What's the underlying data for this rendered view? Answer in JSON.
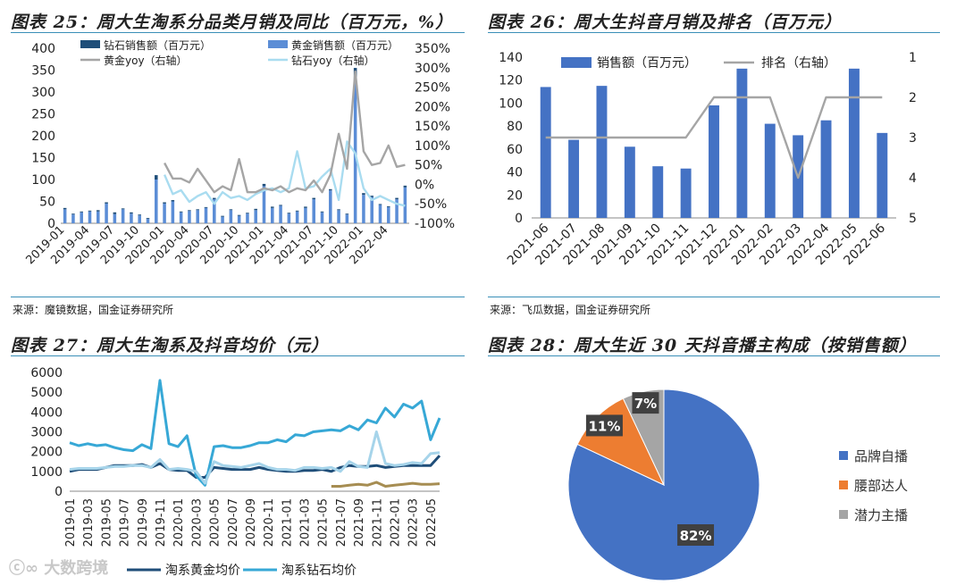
{
  "panels": {
    "p25": {
      "title": "图表 25：周大生淘系分品类月销及同比（百万元，%）",
      "source": "来源：魔镜数据，国金证券研究所"
    },
    "p26": {
      "title": "图表 26：周大生抖音月销及排名（百万元）",
      "source": "来源：飞瓜数据，国金证券研究所"
    },
    "p27": {
      "title": "图表 27：周大生淘系及抖音均价（元）"
    },
    "p28": {
      "title": "图表 28：周大生近 30 天抖音播主构成（按销售额）"
    }
  },
  "watermark": "大数跨境",
  "colors": {
    "blue": "#4472c4",
    "navy": "#1f4e79",
    "mid": "#5b8dd6",
    "cyan": "#37a8d6",
    "lightcyan": "#a9dcf0",
    "gray": "#a5a5a5",
    "orange": "#ed7d31",
    "gold": "#a68d52",
    "rule": "#3a8fb8"
  },
  "chart_data": [
    {
      "id": "p25",
      "type": "bar",
      "x": [
        "2019-01",
        "2019-02",
        "2019-03",
        "2019-04",
        "2019-05",
        "2019-06",
        "2019-07",
        "2019-08",
        "2019-09",
        "2019-10",
        "2019-11",
        "2019-12",
        "2020-01",
        "2020-02",
        "2020-03",
        "2020-04",
        "2020-05",
        "2020-06",
        "2020-07",
        "2020-08",
        "2020-09",
        "2020-10",
        "2020-11",
        "2020-12",
        "2021-01",
        "2021-02",
        "2021-03",
        "2021-04",
        "2021-05",
        "2021-06",
        "2021-07",
        "2021-08",
        "2021-09",
        "2021-10",
        "2021-11",
        "2021-12",
        "2022-01",
        "2022-02",
        "2022-03",
        "2022-04",
        "2022-05",
        "2022-06"
      ],
      "x_ticks": [
        "2019-01",
        "2019-04",
        "2019-07",
        "2019-10",
        "2020-01",
        "2020-04",
        "2020-07",
        "2020-10",
        "2021-01",
        "2021-04",
        "2021-07",
        "2021-10",
        "2022-01",
        "2022-04"
      ],
      "series": [
        {
          "name": "钻石销售额（百万元）",
          "axis": "left",
          "kind": "bar",
          "color": "#1f4e79",
          "values": [
            3,
            2,
            2,
            2,
            3,
            3,
            4,
            2,
            3,
            2,
            2,
            10,
            3,
            3,
            2,
            2,
            2,
            2,
            3,
            2,
            2,
            2,
            2,
            3,
            5,
            3,
            2,
            2,
            2,
            3,
            3,
            2,
            3,
            2,
            2,
            30,
            4,
            3,
            2,
            2,
            3,
            4
          ]
        },
        {
          "name": "黄金销售额（百万元）",
          "axis": "left",
          "kind": "bar",
          "color": "#5b8dd6",
          "values": [
            32,
            20,
            25,
            27,
            27,
            45,
            21,
            32,
            22,
            18,
            10,
            100,
            45,
            50,
            25,
            28,
            30,
            35,
            55,
            15,
            30,
            17,
            22,
            30,
            85,
            35,
            40,
            22,
            27,
            35,
            55,
            25,
            75,
            30,
            20,
            325,
            65,
            60,
            42,
            37,
            55,
            82
          ]
        },
        {
          "name": "黄金yoy（右轴）",
          "axis": "right",
          "kind": "line",
          "color": "#a5a5a5",
          "values": [
            null,
            null,
            null,
            null,
            null,
            null,
            null,
            null,
            null,
            null,
            null,
            null,
            55,
            15,
            15,
            5,
            40,
            10,
            -20,
            -5,
            -15,
            65,
            -20,
            -20,
            -10,
            -15,
            -5,
            -20,
            -10,
            -15,
            10,
            -20,
            25,
            130,
            40,
            290,
            85,
            50,
            55,
            100,
            45,
            50
          ]
        },
        {
          "name": "钻石yoy（右轴）",
          "axis": "right",
          "kind": "line",
          "color": "#a9dcf0",
          "values": [
            null,
            null,
            null,
            null,
            null,
            null,
            null,
            null,
            null,
            null,
            null,
            null,
            25,
            -25,
            -15,
            -45,
            -30,
            -20,
            -50,
            -20,
            -35,
            -30,
            -40,
            -25,
            -15,
            -10,
            -20,
            -10,
            85,
            -10,
            -5,
            20,
            40,
            -40,
            110,
            80,
            -10,
            -40,
            -30,
            -40,
            -50,
            -55
          ]
        }
      ],
      "y_left": {
        "min": 0,
        "max": 400,
        "ticks": [
          "0",
          "50",
          "100",
          "150",
          "200",
          "250",
          "300",
          "350",
          "400"
        ]
      },
      "y_right": {
        "min": -100,
        "max": 350,
        "ticks": [
          "-100%",
          "-50%",
          "0%",
          "50%",
          "100%",
          "150%",
          "200%",
          "250%",
          "300%",
          "350%"
        ]
      }
    },
    {
      "id": "p26",
      "type": "bar",
      "x": [
        "2021-06",
        "2021-07",
        "2021-08",
        "2021-09",
        "2021-10",
        "2021-11",
        "2021-12",
        "2022-01",
        "2022-02",
        "2022-03",
        "2022-04",
        "2022-05",
        "2022-06"
      ],
      "series": [
        {
          "name": "销售额（百万元）",
          "axis": "left",
          "kind": "bar",
          "color": "#4472c4",
          "values": [
            114,
            68,
            115,
            62,
            45,
            43,
            98,
            130,
            82,
            72,
            85,
            130,
            74
          ]
        },
        {
          "name": "排名（右轴）",
          "axis": "right",
          "kind": "line",
          "color": "#a5a5a5",
          "values": [
            3,
            3,
            3,
            3,
            3,
            3,
            2,
            2,
            2,
            4,
            2,
            2,
            2
          ]
        }
      ],
      "y_left": {
        "min": 0,
        "max": 140,
        "ticks": [
          "0",
          "20",
          "40",
          "60",
          "80",
          "100",
          "120",
          "140"
        ]
      },
      "y_right": {
        "min": 1,
        "max": 5,
        "reversed": true,
        "ticks": [
          "1",
          "2",
          "3",
          "4",
          "5"
        ]
      }
    },
    {
      "id": "p27",
      "type": "line",
      "x": [
        "2019-01",
        "2019-02",
        "2019-03",
        "2019-04",
        "2019-05",
        "2019-06",
        "2019-07",
        "2019-08",
        "2019-09",
        "2019-10",
        "2019-11",
        "2019-12",
        "2020-01",
        "2020-02",
        "2020-03",
        "2020-04",
        "2020-05",
        "2020-06",
        "2020-07",
        "2020-08",
        "2020-09",
        "2020-10",
        "2020-11",
        "2020-12",
        "2021-01",
        "2021-02",
        "2021-03",
        "2021-04",
        "2021-05",
        "2021-06",
        "2021-07",
        "2021-08",
        "2021-09",
        "2021-10",
        "2021-11",
        "2021-12",
        "2022-01",
        "2022-02",
        "2022-03",
        "2022-04",
        "2022-05",
        "2022-06"
      ],
      "x_ticks": [
        "2019-01",
        "2019-03",
        "2019-05",
        "2019-07",
        "2019-09",
        "2019-11",
        "2020-01",
        "2020-03",
        "2020-05",
        "2020-07",
        "2020-09",
        "2020-11",
        "2021-01",
        "2021-03",
        "2021-05",
        "2021-07",
        "2021-09",
        "2021-11",
        "2022-01",
        "2022-03",
        "2022-05"
      ],
      "series": [
        {
          "name": "淘系黄金均价",
          "color": "#1f4e79",
          "values": [
            1000,
            1100,
            1100,
            1100,
            1200,
            1300,
            1300,
            1300,
            1350,
            1200,
            1400,
            1100,
            1050,
            1050,
            700,
            700,
            1200,
            1150,
            1100,
            1100,
            1100,
            1200,
            1100,
            1050,
            1000,
            1000,
            1050,
            1050,
            1100,
            1000,
            1200,
            1300,
            1250,
            1250,
            1300,
            1200,
            1250,
            1300,
            1300,
            1300,
            1300,
            1800
          ]
        },
        {
          "name": "淘系钻石均价",
          "color": "#37a8d6",
          "values": [
            2450,
            2300,
            2400,
            2300,
            2350,
            2200,
            2100,
            2050,
            2350,
            2150,
            5600,
            2400,
            2250,
            2800,
            800,
            300,
            2250,
            2300,
            2200,
            2200,
            2300,
            2450,
            2450,
            2600,
            2500,
            2850,
            2800,
            3000,
            3050,
            3100,
            3050,
            3300,
            3100,
            3600,
            3450,
            4200,
            3750,
            4400,
            4200,
            4550,
            2600,
            3700
          ]
        },
        {
          "name": "淘系钻石均价",
          "color": "#a6d4ea",
          "values": [
            1100,
            1150,
            1150,
            1150,
            1200,
            1250,
            1250,
            1300,
            1300,
            1200,
            1600,
            1100,
            1150,
            1100,
            1000,
            400,
            1500,
            1300,
            1250,
            1200,
            1300,
            1400,
            1200,
            1100,
            1100,
            1050,
            1200,
            1200,
            1150,
            1200,
            1000,
            1500,
            1250,
            1200,
            3000,
            1400,
            1300,
            1350,
            1450,
            1400,
            1900,
            1950
          ]
        },
        {
          "name": "",
          "color": "#a68d52",
          "start": "2021-06",
          "values": [
            null,
            null,
            null,
            null,
            null,
            null,
            null,
            null,
            null,
            null,
            null,
            null,
            null,
            null,
            null,
            null,
            null,
            null,
            null,
            null,
            null,
            null,
            null,
            null,
            null,
            null,
            null,
            null,
            null,
            250,
            250,
            300,
            350,
            300,
            450,
            250,
            300,
            350,
            400,
            350,
            350,
            380
          ]
        }
      ],
      "y": {
        "min": 0,
        "max": 6000,
        "ticks": [
          "0",
          "1000",
          "2000",
          "3000",
          "4000",
          "5000",
          "6000"
        ]
      },
      "legend": [
        "淘系黄金均价",
        "淘系钻石均价"
      ]
    },
    {
      "id": "p28",
      "type": "pie",
      "slices": [
        {
          "label": "品牌自播",
          "value": 82,
          "text": "82%",
          "color": "#4472c4"
        },
        {
          "label": "腰部达人",
          "value": 11,
          "text": "11%",
          "color": "#ed7d31"
        },
        {
          "label": "潜力主播",
          "value": 7,
          "text": "7%",
          "color": "#a5a5a5"
        }
      ]
    }
  ]
}
